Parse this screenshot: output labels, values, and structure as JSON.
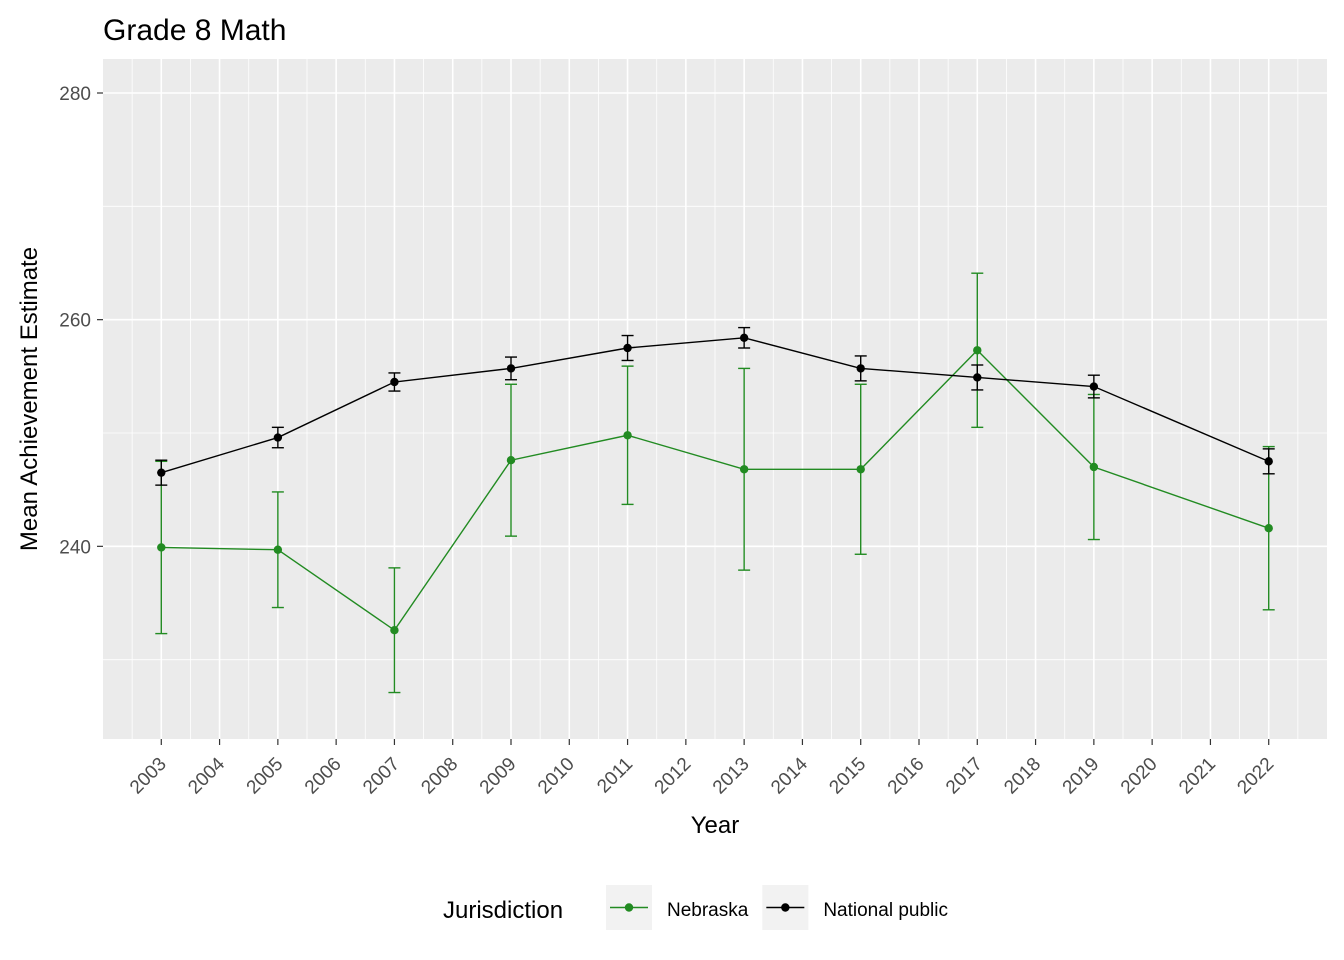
{
  "chart_data": {
    "type": "line",
    "title": "Grade 8 Math",
    "xlabel": "Year",
    "ylabel": "Mean Achievement Estimate",
    "x": [
      2003,
      2005,
      2007,
      2009,
      2011,
      2013,
      2015,
      2017,
      2019,
      2022
    ],
    "x_ticks": [
      "2003",
      "2004",
      "2005",
      "2006",
      "2007",
      "2008",
      "2009",
      "2010",
      "2011",
      "2012",
      "2013",
      "2014",
      "2015",
      "2016",
      "2017",
      "2018",
      "2019",
      "2020",
      "2021",
      "2022"
    ],
    "xlim": [
      2002,
      2023
    ],
    "y_ticks": [
      "240",
      "260",
      "280"
    ],
    "ylim": [
      223,
      283
    ],
    "grid": true,
    "legend": {
      "title": "Jurisdiction",
      "placement": "bottom"
    },
    "series": [
      {
        "name": "Nebraska",
        "color": "#228B22",
        "values": [
          239.9,
          239.7,
          232.6,
          247.6,
          249.8,
          246.8,
          246.8,
          257.3,
          247.0,
          241.6
        ],
        "lower": [
          232.3,
          234.6,
          227.1,
          240.9,
          243.7,
          237.9,
          239.3,
          250.5,
          240.6,
          234.4
        ],
        "upper": [
          247.5,
          244.8,
          238.1,
          254.3,
          255.9,
          255.7,
          254.3,
          264.1,
          253.4,
          248.8
        ]
      },
      {
        "name": "National public",
        "color": "#000000",
        "values": [
          246.5,
          249.6,
          254.5,
          255.7,
          257.5,
          258.4,
          255.7,
          254.9,
          254.1,
          247.5
        ],
        "lower": [
          245.4,
          248.7,
          253.7,
          254.7,
          256.4,
          257.5,
          254.6,
          253.8,
          253.1,
          246.4
        ],
        "upper": [
          247.6,
          250.5,
          255.3,
          256.7,
          258.6,
          259.3,
          256.8,
          256.0,
          255.1,
          248.6
        ]
      }
    ]
  }
}
